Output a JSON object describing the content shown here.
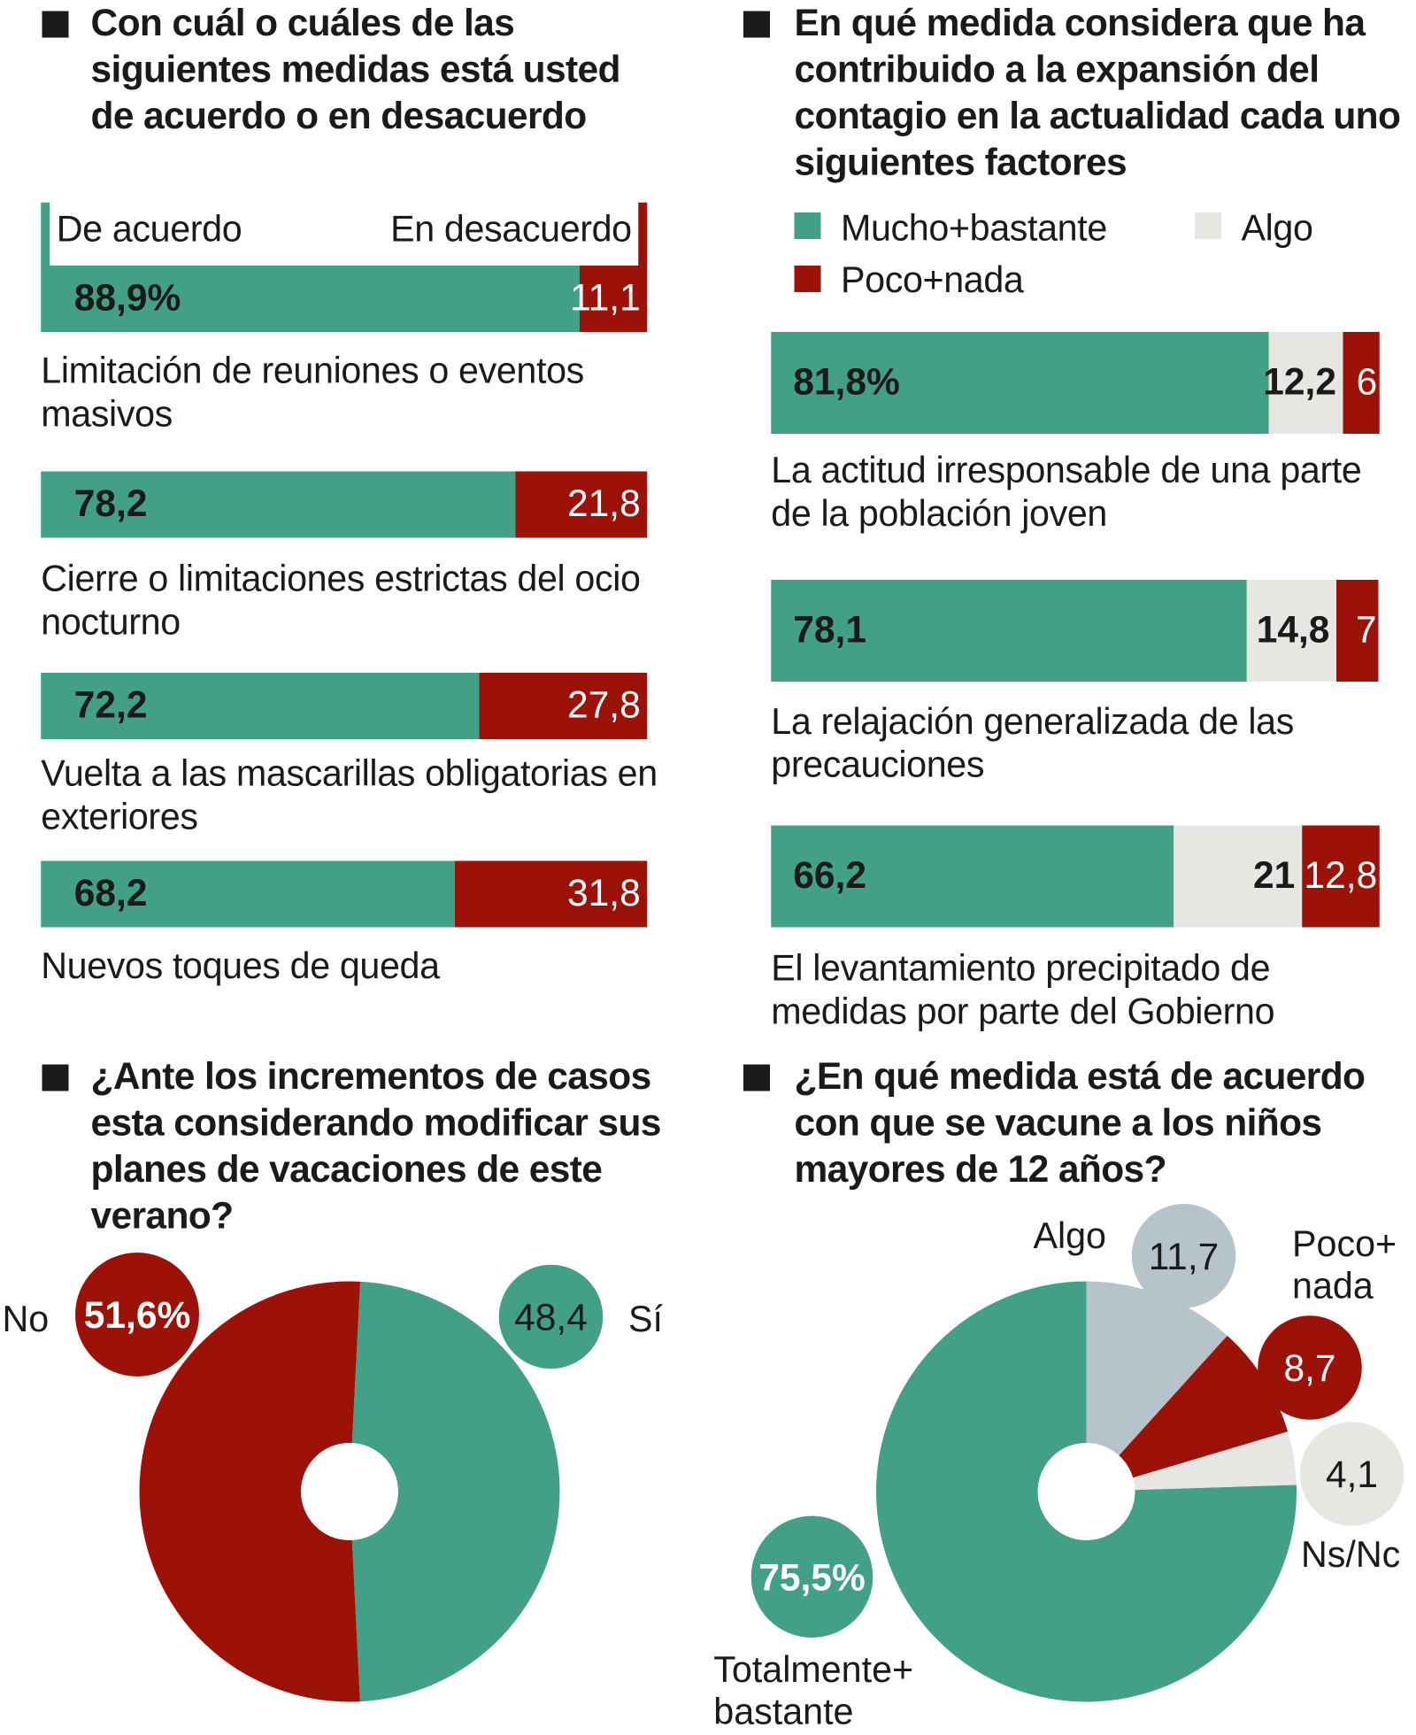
{
  "colors": {
    "green": "#41a085",
    "red": "#9d1208",
    "light": "#e6e6e2",
    "bluegrey": "#b7c3cb"
  },
  "chart_data": [
    {
      "type": "bar",
      "orientation": "horizontal-stacked",
      "title": "Con cuál o cuáles de las siguientes medidas está usted de acuerdo o en desacuerdo",
      "legend": [
        "De acuerdo",
        "En desacuerdo"
      ],
      "categories": [
        "Limitación de reuniones o eventos masivos",
        "Cierre o limitaciones estrictas del ocio nocturno",
        "Vuelta a las mascarillas obligatorias en exteriores",
        "Nuevos toques de queda"
      ],
      "series": [
        {
          "name": "De acuerdo",
          "values": [
            88.9,
            78.2,
            72.2,
            68.2
          ],
          "labels": [
            "88,9%",
            "78,2",
            "72,2",
            "68,2"
          ]
        },
        {
          "name": "En desacuerdo",
          "values": [
            11.1,
            21.8,
            27.8,
            31.8
          ],
          "labels": [
            "11,1",
            "21,8",
            "27,8",
            "31,8"
          ]
        }
      ]
    },
    {
      "type": "bar",
      "orientation": "horizontal-stacked",
      "title": "En qué medida considera que ha contribuido a la expansión del contagio en la actualidad cada uno siguientes factores",
      "legend": [
        "Mucho+bastante",
        "Algo",
        "Poco+nada"
      ],
      "categories": [
        "La actitud irresponsable de una parte de la población joven",
        "La relajación generalizada de las precauciones",
        "El levantamiento precipitado de medidas por parte del Gobierno"
      ],
      "series": [
        {
          "name": "Mucho+bastante",
          "values": [
            81.8,
            78.1,
            66.2
          ],
          "labels": [
            "81,8%",
            "78,1",
            "66,2"
          ]
        },
        {
          "name": "Algo",
          "values": [
            12.2,
            14.8,
            21
          ],
          "labels": [
            "12,2",
            "14,8",
            "21"
          ]
        },
        {
          "name": "Poco+nada",
          "values": [
            6,
            7,
            12.8
          ],
          "labels": [
            "6",
            "7",
            "12,8"
          ]
        }
      ]
    },
    {
      "type": "pie",
      "donut": true,
      "title": "¿Ante los incrementos de casos esta considerando modificar sus planes de vacaciones de este verano?",
      "slices": [
        {
          "name": "Sí",
          "value": 48.4,
          "label": "48,4"
        },
        {
          "name": "No",
          "value": 51.6,
          "label": "51,6%"
        }
      ]
    },
    {
      "type": "pie",
      "donut": true,
      "title": "¿En qué medida está de acuerdo con que se vacune a los niños mayores de 12 años?",
      "slices": [
        {
          "name": "Algo",
          "value": 11.7,
          "label": "11,7"
        },
        {
          "name": "Poco+ nada",
          "value": 8.7,
          "label": "8,7"
        },
        {
          "name": "Ns/Nc",
          "value": 4.1,
          "label": "4,1"
        },
        {
          "name": "Totalmente+ bastante",
          "value": 75.5,
          "label": "75,5%"
        }
      ]
    }
  ]
}
